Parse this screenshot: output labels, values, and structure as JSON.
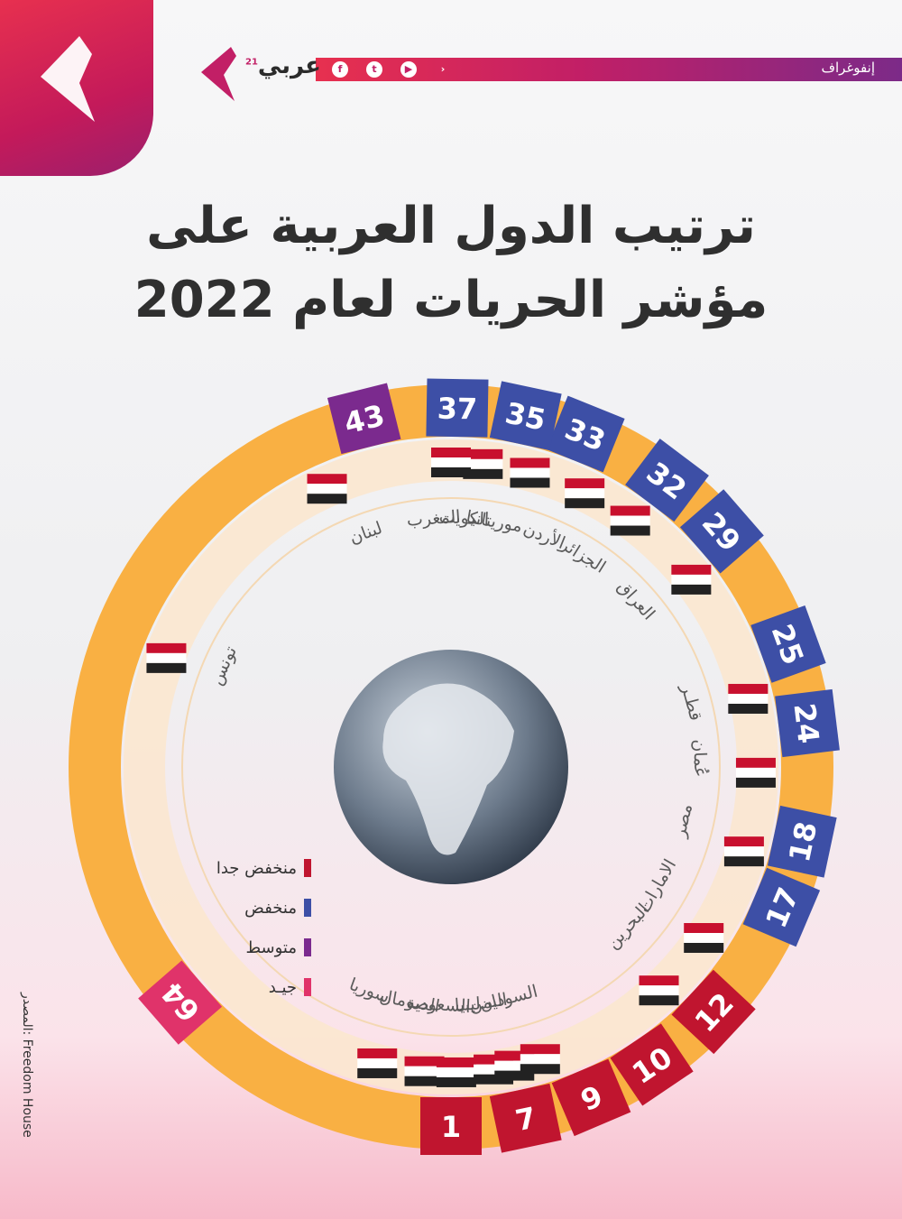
{
  "header": {
    "section_label": "إنفوغراف",
    "brand_name": "عربي",
    "brand_superscript": "21",
    "social_icons": [
      "facebook-icon",
      "twitter-icon",
      "youtube-icon",
      "arabi21-icon"
    ]
  },
  "title_lines": [
    "ترتيب الدول العربية على",
    "مؤشر الحريات لعام 2022"
  ],
  "legend": [
    {
      "label": "منخفض جدا",
      "color": "#c0152f"
    },
    {
      "label": "منخفض",
      "color": "#3d4fa6"
    },
    {
      "label": "متوسط",
      "color": "#7b2a8e"
    },
    {
      "label": "جيـد",
      "color": "#e0336a"
    }
  ],
  "source": "المصدر: Freedom House",
  "chart_data": {
    "type": "radial",
    "title": "ترتيب الدول العربية على مؤشر الحريات لعام 2022",
    "series": [
      {
        "country": "سوريا",
        "score": 1,
        "category": "منخفض جدا"
      },
      {
        "country": "السعودية",
        "score": 7,
        "category": "منخفض جدا"
      },
      {
        "country": "الصومال",
        "score": 7,
        "category": "منخفض جدا"
      },
      {
        "country": "اليمن",
        "score": 9,
        "category": "منخفض جدا"
      },
      {
        "country": "ليبيا",
        "score": 9,
        "category": "منخفض جدا"
      },
      {
        "country": "السودان",
        "score": 10,
        "category": "منخفض جدا"
      },
      {
        "country": "البحرين",
        "score": 12,
        "category": "منخفض جدا"
      },
      {
        "country": "الامارات",
        "score": 17,
        "category": "منخفض"
      },
      {
        "country": "مصر",
        "score": 18,
        "category": "منخفض"
      },
      {
        "country": "عُمان",
        "score": 24,
        "category": "منخفض"
      },
      {
        "country": "قطـر",
        "score": 25,
        "category": "منخفض"
      },
      {
        "country": "العراق",
        "score": 29,
        "category": "منخفض"
      },
      {
        "country": "الجزائر",
        "score": 32,
        "category": "منخفض"
      },
      {
        "country": "الأردن",
        "score": 33,
        "category": "منخفض"
      },
      {
        "country": "موريتانيا",
        "score": 35,
        "category": "منخفض"
      },
      {
        "country": "الكويت",
        "score": 37,
        "category": "منخفض"
      },
      {
        "country": "المغرب",
        "score": 37,
        "category": "منخفض"
      },
      {
        "country": "لبنان",
        "score": 43,
        "category": "متوسط"
      },
      {
        "country": "تونس",
        "score": 64,
        "category": "جيـد"
      }
    ],
    "badges": [
      {
        "label": "1",
        "color": "#c0152f"
      },
      {
        "label": "7",
        "color": "#c0152f"
      },
      {
        "label": "9",
        "color": "#c0152f"
      },
      {
        "label": "10",
        "color": "#c0152f"
      },
      {
        "label": "12",
        "color": "#c0152f"
      },
      {
        "label": "17",
        "color": "#3d4fa6"
      },
      {
        "label": "18",
        "color": "#3d4fa6"
      },
      {
        "label": "24",
        "color": "#3d4fa6"
      },
      {
        "label": "25",
        "color": "#3d4fa6"
      },
      {
        "label": "29",
        "color": "#3d4fa6"
      },
      {
        "label": "32",
        "color": "#3d4fa6"
      },
      {
        "label": "33",
        "color": "#3d4fa6"
      },
      {
        "label": "35",
        "color": "#3d4fa6"
      },
      {
        "label": "37",
        "color": "#3d4fa6"
      },
      {
        "label": "43",
        "color": "#7b2a8e"
      },
      {
        "label": "64",
        "color": "#e0336a"
      }
    ],
    "labels": [
      "سوريا",
      "الصومال",
      "السعودية",
      "ليبيا",
      "اليمن",
      "السودان",
      "البحرين",
      "الامارات",
      "مصر",
      "عُمان",
      "قطـر",
      "العراق",
      "الجزائر",
      "الأردن",
      "موريتانيا",
      "الكويت",
      "المغرب",
      "لبنان",
      "تونس"
    ],
    "ring_color": "#f9b043"
  }
}
